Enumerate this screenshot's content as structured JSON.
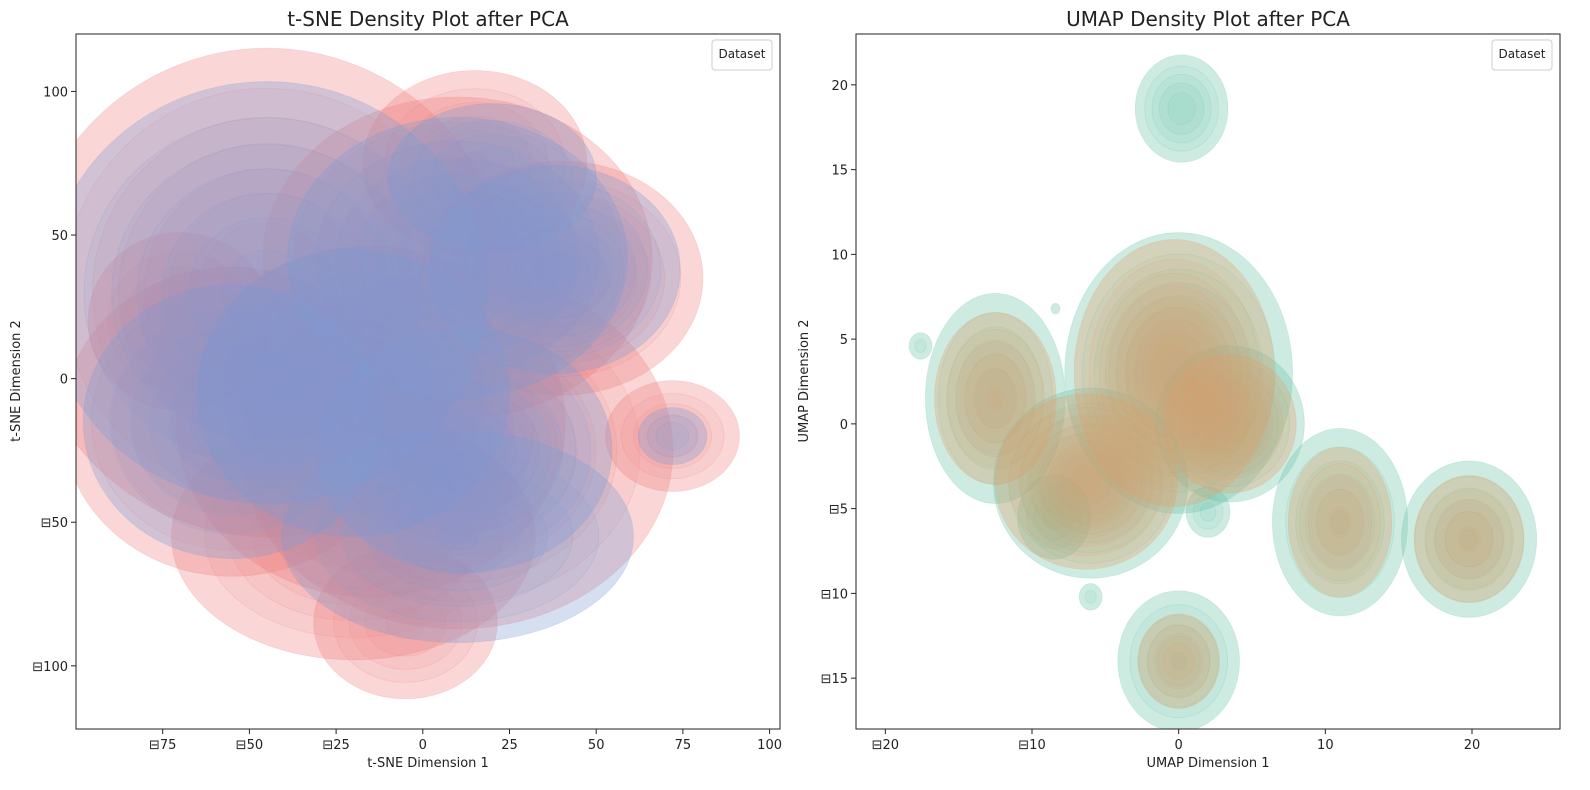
{
  "chart_data": [
    {
      "type": "density-contour",
      "title": "t-SNE Density Plot after PCA",
      "xlabel": "t-SNE Dimension 1",
      "ylabel": "t-SNE Dimension 2",
      "xlim": [
        -100,
        103
      ],
      "ylim": [
        -122,
        120
      ],
      "xticks": [
        -75,
        -50,
        -25,
        0,
        25,
        50,
        75,
        100
      ],
      "yticks": [
        -100,
        -50,
        0,
        50,
        100
      ],
      "xtick_labels": [
        "⊟75",
        "⊟50",
        "⊟25",
        "0",
        "25",
        "50",
        "75",
        "100"
      ],
      "ytick_labels": [
        "⊟100",
        "⊟50",
        "0",
        "50",
        "100"
      ],
      "legend_title": "Dataset",
      "legend_position": "top-right",
      "grid": false,
      "series": [
        {
          "color": "#f08080",
          "components": [
            {
              "x": -45,
              "y": 30,
              "sx": 28,
              "sy": 34,
              "w": 0.8
            },
            {
              "x": -55,
              "y": -15,
              "sx": 20,
              "sy": 22,
              "w": 0.7
            },
            {
              "x": -15,
              "y": -15,
              "sx": 22,
              "sy": 24,
              "w": 0.9
            },
            {
              "x": 10,
              "y": 42,
              "sx": 22,
              "sy": 22,
              "w": 0.9
            },
            {
              "x": 40,
              "y": 35,
              "sx": 16,
              "sy": 16,
              "w": 0.9
            },
            {
              "x": 15,
              "y": 75,
              "sx": 14,
              "sy": 14,
              "w": 0.5
            },
            {
              "x": 10,
              "y": -25,
              "sx": 24,
              "sy": 24,
              "w": 1.0
            },
            {
              "x": -20,
              "y": -55,
              "sx": 22,
              "sy": 18,
              "w": 0.6
            },
            {
              "x": -5,
              "y": -85,
              "sx": 12,
              "sy": 12,
              "w": 0.4
            },
            {
              "x": 72,
              "y": -20,
              "sx": 9,
              "sy": 9,
              "w": 0.35
            },
            {
              "x": -70,
              "y": 20,
              "sx": 12,
              "sy": 14,
              "w": 0.4
            }
          ]
        },
        {
          "color": "#7b9ad4",
          "components": [
            {
              "x": -45,
              "y": 30,
              "sx": 26,
              "sy": 30,
              "w": 0.7
            },
            {
              "x": -55,
              "y": -15,
              "sx": 18,
              "sy": 20,
              "w": 0.6
            },
            {
              "x": -20,
              "y": -5,
              "sx": 18,
              "sy": 20,
              "w": 0.8
            },
            {
              "x": 12,
              "y": -25,
              "sx": 16,
              "sy": 16,
              "w": 1.2
            },
            {
              "x": 38,
              "y": 38,
              "sx": 14,
              "sy": 14,
              "w": 1.0
            },
            {
              "x": 10,
              "y": 42,
              "sx": 20,
              "sy": 20,
              "w": 0.7
            },
            {
              "x": 10,
              "y": -55,
              "sx": 22,
              "sy": 16,
              "w": 0.5
            },
            {
              "x": 20,
              "y": 70,
              "sx": 14,
              "sy": 12,
              "w": 0.35
            },
            {
              "x": 72,
              "y": -20,
              "sx": 5,
              "sy": 5,
              "w": 0.25
            }
          ]
        }
      ]
    },
    {
      "type": "density-contour",
      "title": "UMAP Density Plot after PCA",
      "xlabel": "UMAP Dimension 1",
      "ylabel": "UMAP Dimension 2",
      "xlim": [
        -22,
        26
      ],
      "ylim": [
        -18,
        23
      ],
      "xticks": [
        -20,
        -10,
        0,
        10,
        20
      ],
      "yticks": [
        -15,
        -10,
        -5,
        0,
        5,
        10,
        15,
        20
      ],
      "xtick_labels": [
        "⊟20",
        "⊟10",
        "0",
        "10",
        "20"
      ],
      "ytick_labels": [
        "⊟15",
        "⊟10",
        "⊟5",
        "0",
        "5",
        "10",
        "15",
        "20"
      ],
      "legend_title": "Dataset",
      "legend_position": "top-right",
      "grid": false,
      "series": [
        {
          "color": "#66c2a5",
          "components": [
            {
              "x": 0,
              "y": 3,
              "sx": 3.0,
              "sy": 3.2,
              "w": 1.0
            },
            {
              "x": -6,
              "y": -3.5,
              "sx": 2.6,
              "sy": 2.2,
              "w": 0.9
            },
            {
              "x": -12.5,
              "y": 1.5,
              "sx": 2.0,
              "sy": 2.6,
              "w": 0.6
            },
            {
              "x": 3.5,
              "y": 0,
              "sx": 2.2,
              "sy": 2.0,
              "w": 0.5
            },
            {
              "x": 11,
              "y": -5.8,
              "sx": 2.0,
              "sy": 2.4,
              "w": 0.5
            },
            {
              "x": 19.8,
              "y": -6.8,
              "sx": 2.0,
              "sy": 2.0,
              "w": 0.5
            },
            {
              "x": 0,
              "y": -14,
              "sx": 1.8,
              "sy": 1.8,
              "w": 0.5
            },
            {
              "x": 0.2,
              "y": 18.6,
              "sx": 1.4,
              "sy": 1.4,
              "w": 0.45
            },
            {
              "x": 2,
              "y": -5.2,
              "sx": 0.8,
              "sy": 0.8,
              "w": 0.2
            },
            {
              "x": -6,
              "y": -10.2,
              "sx": 0.5,
              "sy": 0.5,
              "w": 0.12
            },
            {
              "x": -17.6,
              "y": 4.6,
              "sx": 0.5,
              "sy": 0.5,
              "w": 0.12
            },
            {
              "x": -8.4,
              "y": 6.8,
              "sx": 0.3,
              "sy": 0.3,
              "w": 0.06
            },
            {
              "x": -8.5,
              "y": -5.5,
              "sx": 1.2,
              "sy": 1.2,
              "w": 0.3
            }
          ]
        },
        {
          "color": "#e39e6a",
          "components": [
            {
              "x": -0.3,
              "y": 3,
              "sx": 2.6,
              "sy": 3.0,
              "w": 1.1
            },
            {
              "x": -6.3,
              "y": -3.4,
              "sx": 2.4,
              "sy": 2.0,
              "w": 1.0
            },
            {
              "x": -12.5,
              "y": 1.5,
              "sx": 1.8,
              "sy": 2.2,
              "w": 0.5
            },
            {
              "x": 3.5,
              "y": 0,
              "sx": 2.0,
              "sy": 1.8,
              "w": 0.45
            },
            {
              "x": 11,
              "y": -5.8,
              "sx": 1.6,
              "sy": 2.0,
              "w": 0.4
            },
            {
              "x": 19.8,
              "y": -6.8,
              "sx": 1.7,
              "sy": 1.7,
              "w": 0.4
            },
            {
              "x": 0,
              "y": -14,
              "sx": 1.3,
              "sy": 1.3,
              "w": 0.35
            }
          ]
        }
      ]
    }
  ]
}
